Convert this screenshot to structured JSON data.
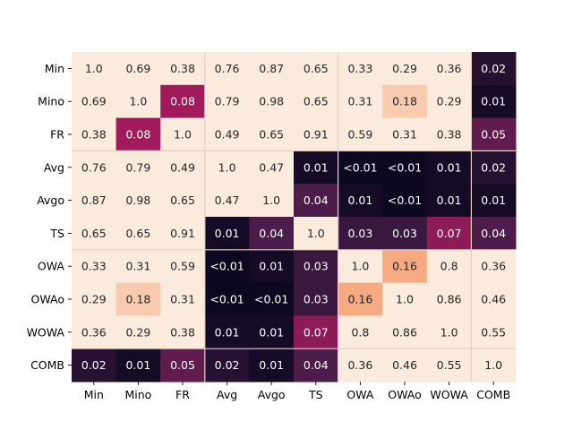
{
  "chart_data": {
    "type": "heatmap",
    "title": "",
    "xlabel": "",
    "ylabel": "",
    "x_labels": [
      "Min",
      "Mino",
      "FR",
      "Avg",
      "Avgo",
      "TS",
      "OWA",
      "OWAo",
      "WOWA",
      "COMB"
    ],
    "y_labels": [
      "Min",
      "Mino",
      "FR",
      "Avg",
      "Avgo",
      "TS",
      "OWA",
      "OWAo",
      "WOWA",
      "COMB"
    ],
    "values": [
      [
        1.0,
        0.69,
        0.38,
        0.76,
        0.87,
        0.65,
        0.33,
        0.29,
        0.36,
        0.02
      ],
      [
        0.69,
        1.0,
        0.08,
        0.79,
        0.98,
        0.65,
        0.31,
        0.18,
        0.29,
        0.01
      ],
      [
        0.38,
        0.08,
        1.0,
        0.49,
        0.65,
        0.91,
        0.59,
        0.31,
        0.38,
        0.05
      ],
      [
        0.76,
        0.79,
        0.49,
        1.0,
        0.47,
        0.01,
        0.005,
        0.005,
        0.01,
        0.02
      ],
      [
        0.87,
        0.98,
        0.65,
        0.47,
        1.0,
        0.04,
        0.01,
        0.005,
        0.01,
        0.01
      ],
      [
        0.65,
        0.65,
        0.91,
        0.01,
        0.04,
        1.0,
        0.03,
        0.03,
        0.07,
        0.04
      ],
      [
        0.33,
        0.31,
        0.59,
        0.005,
        0.01,
        0.03,
        1.0,
        0.16,
        0.8,
        0.36
      ],
      [
        0.29,
        0.18,
        0.31,
        0.005,
        0.005,
        0.03,
        0.16,
        1.0,
        0.86,
        0.46
      ],
      [
        0.36,
        0.29,
        0.38,
        0.01,
        0.01,
        0.07,
        0.8,
        0.86,
        1.0,
        0.55
      ],
      [
        0.02,
        0.01,
        0.05,
        0.02,
        0.01,
        0.04,
        0.36,
        0.46,
        0.55,
        1.0
      ]
    ],
    "cell_labels": [
      [
        "1.0",
        "0.69",
        "0.38",
        "0.76",
        "0.87",
        "0.65",
        "0.33",
        "0.29",
        "0.36",
        "0.02"
      ],
      [
        "0.69",
        "1.0",
        "0.08",
        "0.79",
        "0.98",
        "0.65",
        "0.31",
        "0.18",
        "0.29",
        "0.01"
      ],
      [
        "0.38",
        "0.08",
        "1.0",
        "0.49",
        "0.65",
        "0.91",
        "0.59",
        "0.31",
        "0.38",
        "0.05"
      ],
      [
        "0.76",
        "0.79",
        "0.49",
        "1.0",
        "0.47",
        "0.01",
        "<0.01",
        "<0.01",
        "0.01",
        "0.02"
      ],
      [
        "0.87",
        "0.98",
        "0.65",
        "0.47",
        "1.0",
        "0.04",
        "0.01",
        "<0.01",
        "0.01",
        "0.01"
      ],
      [
        "0.65",
        "0.65",
        "0.91",
        "0.01",
        "0.04",
        "1.0",
        "0.03",
        "0.03",
        "0.07",
        "0.04"
      ],
      [
        "0.33",
        "0.31",
        "0.59",
        "<0.01",
        "0.01",
        "0.03",
        "1.0",
        "0.16",
        "0.8",
        "0.36"
      ],
      [
        "0.29",
        "0.18",
        "0.31",
        "<0.01",
        "<0.01",
        "0.03",
        "0.16",
        "1.0",
        "0.86",
        "0.46"
      ],
      [
        "0.36",
        "0.29",
        "0.38",
        "0.01",
        "0.01",
        "0.07",
        "0.8",
        "0.86",
        "1.0",
        "0.55"
      ],
      [
        "0.02",
        "0.01",
        "0.05",
        "0.02",
        "0.01",
        "0.04",
        "0.36",
        "0.46",
        "0.55",
        "1.0"
      ]
    ],
    "color_scale": {
      "colormap": "rocket",
      "vmin": 0.0,
      "vmax": 0.2,
      "colors": [
        "#03051a",
        "#4c1d4b",
        "#a11a5b",
        "#e83f3f",
        "#f6aa82",
        "#faebdd"
      ]
    },
    "group_separators_after_index": [
      2,
      5,
      8
    ],
    "separator_color": "#e3d2c3",
    "text_color_light": "#ffffff",
    "text_color_dark": "#262626",
    "tick_color": "#000000",
    "colorbar": false,
    "grid": false
  }
}
